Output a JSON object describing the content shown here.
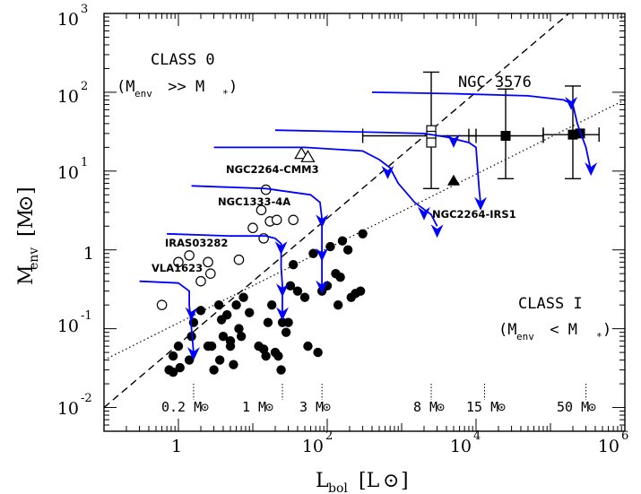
{
  "chart_data": {
    "type": "scatter",
    "title": "",
    "xlabel": {
      "main": "L",
      "sub": "bol",
      "unit": "[L",
      "unit_sym": "⊙",
      "unit_close": "]"
    },
    "ylabel": {
      "main": "M",
      "sub": "env",
      "unit": "[M",
      "unit_sym": "⊙",
      "unit_close": "]"
    },
    "x_scale": "log",
    "y_scale": "log",
    "xlim": [
      0.1,
      1000000
    ],
    "ylim": [
      0.005,
      1000
    ],
    "x_ticks": [
      {
        "base": "1",
        "exp": ""
      },
      {
        "base": "10",
        "exp": "2"
      },
      {
        "base": "10",
        "exp": "4"
      },
      {
        "base": "10",
        "exp": "6"
      }
    ],
    "y_ticks": [
      {
        "base": "10",
        "exp": "-2"
      },
      {
        "base": "10",
        "exp": "-1"
      },
      {
        "base": "1",
        "exp": ""
      },
      {
        "base": "10",
        "exp": "1"
      },
      {
        "base": "10",
        "exp": "2"
      },
      {
        "base": "10",
        "exp": "3"
      }
    ],
    "class_labels": {
      "class0_title": "CLASS 0",
      "class0_cond": "(M",
      "class0_sub": "env",
      "class0_rest": " >> M",
      "class0_star": "*",
      "class0_close": ")",
      "class1_title": "CLASS I",
      "class1_cond": "(M",
      "class1_sub": "env",
      "class1_rest": " < M",
      "class1_star": "*",
      "class1_close": ")"
    },
    "source_labels": [
      "NGC 3576",
      "NGC2264-CMM3",
      "NGC1333-4A",
      "IRAS03282",
      "VLA1623",
      "NGC2264-IRS1"
    ],
    "final_masses": [
      {
        "label": "0.2 M",
        "sym": "⊙",
        "x": 1.6
      },
      {
        "label": "1 M",
        "sym": "⊙",
        "x": 25
      },
      {
        "label": "3 M",
        "sym": "⊙",
        "x": 85
      },
      {
        "label": "8 M",
        "sym": "⊙",
        "x": 2500
      },
      {
        "label": "15 M",
        "sym": "⊙",
        "x": 13000
      },
      {
        "label": "50 M",
        "sym": "⊙",
        "x": 300000
      }
    ],
    "class0_boundary": {
      "style": "dashed",
      "points": [
        [
          0.1,
          0.01
        ],
        [
          1000000,
          4000
        ]
      ]
    },
    "class1_boundary": {
      "style": "dotted",
      "points": [
        [
          0.1,
          0.04
        ],
        [
          1000000,
          80
        ]
      ]
    },
    "filled_circles": [
      [
        0.75,
        0.03
      ],
      [
        0.85,
        0.028
      ],
      [
        0.85,
        0.045
      ],
      [
        1.0,
        0.06
      ],
      [
        1.05,
        0.032
      ],
      [
        1.4,
        0.04
      ],
      [
        1.5,
        0.08
      ],
      [
        1.6,
        0.12
      ],
      [
        2.0,
        0.17
      ],
      [
        2.5,
        0.06
      ],
      [
        2.8,
        0.06
      ],
      [
        3.0,
        0.03
      ],
      [
        3.5,
        0.2
      ],
      [
        3.6,
        0.04
      ],
      [
        3.8,
        0.13
      ],
      [
        4.0,
        0.08
      ],
      [
        4.5,
        0.15
      ],
      [
        5.0,
        0.07
      ],
      [
        5.0,
        0.06
      ],
      [
        5.5,
        0.035
      ],
      [
        6.0,
        0.2
      ],
      [
        6.5,
        0.1
      ],
      [
        7.0,
        0.08
      ],
      [
        7.5,
        0.25
      ],
      [
        9.0,
        0.16
      ],
      [
        12.0,
        0.06
      ],
      [
        14.0,
        0.055
      ],
      [
        15.0,
        0.045
      ],
      [
        16.0,
        0.12
      ],
      [
        18.0,
        0.2
      ],
      [
        20.0,
        0.05
      ],
      [
        22.0,
        0.045
      ],
      [
        24.0,
        0.03
      ],
      [
        25.0,
        0.12
      ],
      [
        28.0,
        0.09
      ],
      [
        30.0,
        0.12
      ],
      [
        32.0,
        0.35
      ],
      [
        35.0,
        0.65
      ],
      [
        40.0,
        0.3
      ],
      [
        50.0,
        0.25
      ],
      [
        55.0,
        0.06
      ],
      [
        65.0,
        0.9
      ],
      [
        75.0,
        0.05
      ],
      [
        85.0,
        0.3
      ],
      [
        100.0,
        0.35
      ],
      [
        110.0,
        1.1
      ],
      [
        130.0,
        0.5
      ],
      [
        140.0,
        0.2
      ],
      [
        150.0,
        0.45
      ],
      [
        160.0,
        1.3
      ],
      [
        190.0,
        1.0
      ],
      [
        210.0,
        0.25
      ],
      [
        240.0,
        0.28
      ],
      [
        280.0,
        0.3
      ],
      [
        300.0,
        1.6
      ]
    ],
    "open_circles": [
      [
        0.6,
        0.2
      ],
      [
        1.0,
        0.7
      ],
      [
        1.4,
        0.85
      ],
      [
        2.0,
        0.4
      ],
      [
        2.5,
        0.7
      ],
      [
        2.7,
        0.5
      ],
      [
        6.5,
        0.75
      ],
      [
        10.0,
        1.9
      ],
      [
        13.0,
        3.2
      ],
      [
        15.0,
        5.8
      ],
      [
        14.0,
        1.4
      ],
      [
        17.0,
        2.3
      ],
      [
        21.0,
        2.4
      ],
      [
        35.0,
        2.4
      ]
    ],
    "open_triangles": [
      [
        45.0,
        16.5
      ],
      [
        55.0,
        15.0
      ]
    ],
    "filled_triangle": [
      [
        5000.0,
        7.5
      ]
    ],
    "open_squares": [
      [
        2500.0,
        33.0
      ],
      [
        2500.0,
        28.0
      ],
      [
        2500.0,
        23.0
      ]
    ],
    "filled_squares": [
      [
        25000.0,
        28.0
      ],
      [
        200000.0,
        29.0
      ],
      [
        250000.0,
        30.0
      ]
    ],
    "error_bars": [
      {
        "x": 2500,
        "y": 28,
        "xlo": 300,
        "xhi": 10000,
        "ylo": 6,
        "yhi": 180
      },
      {
        "x": 25000,
        "y": 28,
        "xlo": 8000,
        "xhi": 80000,
        "ylo": 8,
        "yhi": 110
      },
      {
        "x": 200000,
        "y": 29,
        "xlo": 80000,
        "xhi": 450000,
        "ylo": 8,
        "yhi": 120
      }
    ],
    "tracks": [
      {
        "points": [
          [
            0.3,
            0.4
          ],
          [
            1.0,
            0.38
          ],
          [
            1.4,
            0.3
          ],
          [
            1.4,
            0.2
          ],
          [
            1.5,
            0.1
          ],
          [
            1.6,
            0.05
          ]
        ],
        "arrows": [
          [
            1.5,
            0.16
          ],
          [
            1.6,
            0.05
          ]
        ]
      },
      {
        "points": [
          [
            0.7,
            1.6
          ],
          [
            5.0,
            1.5
          ],
          [
            15.0,
            1.5
          ],
          [
            20.0,
            1.4
          ],
          [
            24.0,
            1.2
          ],
          [
            24.0,
            0.6
          ],
          [
            25.0,
            0.35
          ],
          [
            25.0,
            0.15
          ]
        ],
        "arrows": [
          [
            24.0,
            1.1
          ],
          [
            25.0,
            0.32
          ],
          [
            25.0,
            0.16
          ]
        ]
      },
      {
        "points": [
          [
            1.5,
            6.5
          ],
          [
            15.0,
            6.0
          ],
          [
            60.0,
            5.0
          ],
          [
            80.0,
            4.0
          ],
          [
            85.0,
            2.5
          ],
          [
            85.0,
            1.2
          ],
          [
            85.0,
            0.35
          ]
        ],
        "arrows": [
          [
            85.0,
            2.4
          ],
          [
            85.0,
            0.9
          ],
          [
            85.0,
            0.35
          ]
        ]
      },
      {
        "points": [
          [
            3.0,
            20.0
          ],
          [
            50.0,
            20.0
          ],
          [
            300.0,
            18.0
          ],
          [
            500.0,
            14.0
          ],
          [
            700.0,
            11.0
          ],
          [
            900.0,
            7.0
          ],
          [
            1500.0,
            4.0
          ],
          [
            2500.0,
            2.8
          ],
          [
            3000.0,
            2.0
          ]
        ],
        "arrows": [
          [
            650.0,
            10.0
          ],
          [
            2000.0,
            3.0
          ],
          [
            3000.0,
            1.8
          ]
        ]
      },
      {
        "points": [
          [
            20.0,
            33.0
          ],
          [
            500.0,
            31.0
          ],
          [
            2000.0,
            30.0
          ],
          [
            4000.0,
            27.0
          ],
          [
            8000.0,
            23.0
          ],
          [
            10000.0,
            20.0
          ],
          [
            11000.0,
            6.0
          ],
          [
            11500.0,
            4.0
          ]
        ],
        "arrows": [
          [
            5000.0,
            25.0
          ],
          [
            11500.0,
            4.0
          ]
        ]
      },
      {
        "points": [
          [
            400.0,
            100.0
          ],
          [
            5000.0,
            96.0
          ],
          [
            50000.0,
            90.0
          ],
          [
            150000.0,
            80.0
          ],
          [
            200000.0,
            70.0
          ],
          [
            230000.0,
            40.0
          ],
          [
            300000.0,
            20.0
          ],
          [
            350000.0,
            10.0
          ]
        ],
        "arrows": [
          [
            190000.0,
            75.0
          ],
          [
            350000.0,
            11.0
          ]
        ]
      }
    ],
    "grid": false,
    "legend": "none"
  }
}
